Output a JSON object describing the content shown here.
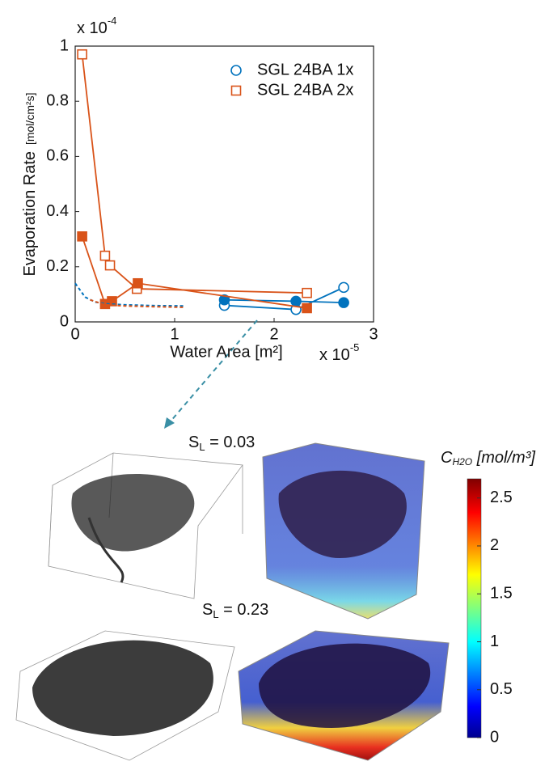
{
  "chart_data": {
    "type": "line",
    "y_label": "Evaporation Rate",
    "y_unit": "[mol/cm²s]",
    "x_label": "Water Area [m²]",
    "y_multiplier": {
      "base": "x 10",
      "exponent": "-4"
    },
    "x_multiplier": {
      "base": "x 10",
      "exponent": "-5"
    },
    "xlim": [
      0,
      3
    ],
    "xticks": [
      0,
      1,
      2,
      3
    ],
    "ylim": [
      0,
      1
    ],
    "yticks": [
      0,
      0.2,
      0.4,
      0.6,
      0.8,
      1
    ],
    "legend": "top-right",
    "series": [
      {
        "name": "SGL 24BA 1x",
        "color": "#0072bd",
        "marker": "circle",
        "filled": false,
        "x": [
          1.5,
          2.22,
          2.7
        ],
        "values": [
          0.06,
          0.045,
          0.125
        ]
      },
      {
        "name": "SGL 24BA 2x",
        "color": "#d95319",
        "marker": "square",
        "filled": false,
        "x": [
          0.07,
          0.3,
          0.35,
          0.62,
          2.33
        ],
        "values": [
          0.97,
          0.24,
          0.205,
          0.12,
          0.105
        ]
      },
      {
        "color": "#0072bd",
        "marker": "circle",
        "filled": true,
        "x": [
          1.5,
          2.22,
          2.7
        ],
        "values": [
          0.08,
          0.075,
          0.07
        ]
      },
      {
        "color": "#d95319",
        "marker": "square",
        "filled": true,
        "x": [
          0.07,
          0.3,
          0.37,
          0.63,
          2.33
        ],
        "values": [
          0.31,
          0.065,
          0.075,
          0.14,
          0.05
        ]
      },
      {
        "color": "#0072bd",
        "marker": "none",
        "dashed": true,
        "x": [
          0,
          0.1,
          0.2,
          0.3,
          0.5,
          0.8,
          1.1
        ],
        "values": [
          0.14,
          0.09,
          0.072,
          0.066,
          0.062,
          0.059,
          0.058
        ]
      },
      {
        "color": "#d95319",
        "marker": "none",
        "dashed": true,
        "x": [
          0.15,
          0.3,
          0.5,
          0.8,
          1.1
        ],
        "values": [
          0.08,
          0.062,
          0.058,
          0.055,
          0.053
        ]
      }
    ]
  },
  "panels": [
    {
      "symbol": "S",
      "subscript": "L",
      "text": " = 0.03"
    },
    {
      "symbol": "S",
      "subscript": "L",
      "text": " = 0.23"
    }
  ],
  "colorbar": {
    "symbol": "C",
    "subscript": "H2O",
    "unit": " [mol/m³]",
    "lim": [
      0,
      2.7
    ],
    "ticks": [
      0,
      0.5,
      1,
      1.5,
      2,
      2.5
    ]
  }
}
